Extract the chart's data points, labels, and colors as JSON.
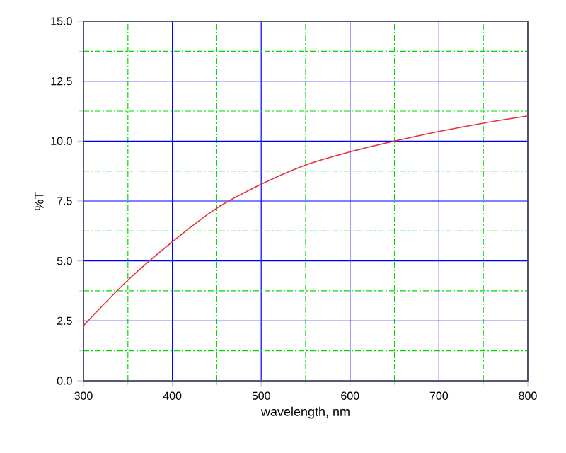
{
  "chart_data": {
    "type": "line",
    "xlabel": "wavelength, nm",
    "ylabel": "%T",
    "x": [
      300,
      350,
      400,
      450,
      500,
      550,
      600,
      650,
      700,
      750,
      800
    ],
    "series": [
      {
        "color": "#e8303a",
        "values": [
          2.3,
          4.2,
          5.8,
          7.2,
          8.2,
          9.0,
          9.55,
          10.0,
          10.4,
          10.75,
          11.05
        ]
      }
    ],
    "xlim": [
      300,
      800
    ],
    "ylim": [
      0,
      15
    ],
    "xticks": [
      300,
      {
        "value": 350,
        "label": null
      },
      400,
      {
        "value": 450,
        "label": null
      },
      500,
      {
        "value": 550,
        "label": null
      },
      600,
      {
        "value": 650,
        "label": null
      },
      700,
      {
        "value": 750,
        "label": null
      },
      800
    ],
    "yticks": [
      {
        "value": 0,
        "label": "0.0"
      },
      {
        "value": 1.25,
        "label": null
      },
      {
        "value": 2.5,
        "label": "2.5"
      },
      {
        "value": 3.75,
        "label": null
      },
      {
        "value": 5,
        "label": "5.0"
      },
      {
        "value": 6.25,
        "label": null
      },
      {
        "value": 7.5,
        "label": "7.5"
      },
      {
        "value": 8.75,
        "label": null
      },
      {
        "value": 10,
        "label": "10.0"
      },
      {
        "value": 11.25,
        "label": null
      },
      {
        "value": 12.5,
        "label": "12.5"
      },
      {
        "value": 13.75,
        "label": null
      },
      {
        "value": 15,
        "label": "15.0"
      }
    ],
    "grid": true,
    "line_style": "solid",
    "marker": "none"
  }
}
